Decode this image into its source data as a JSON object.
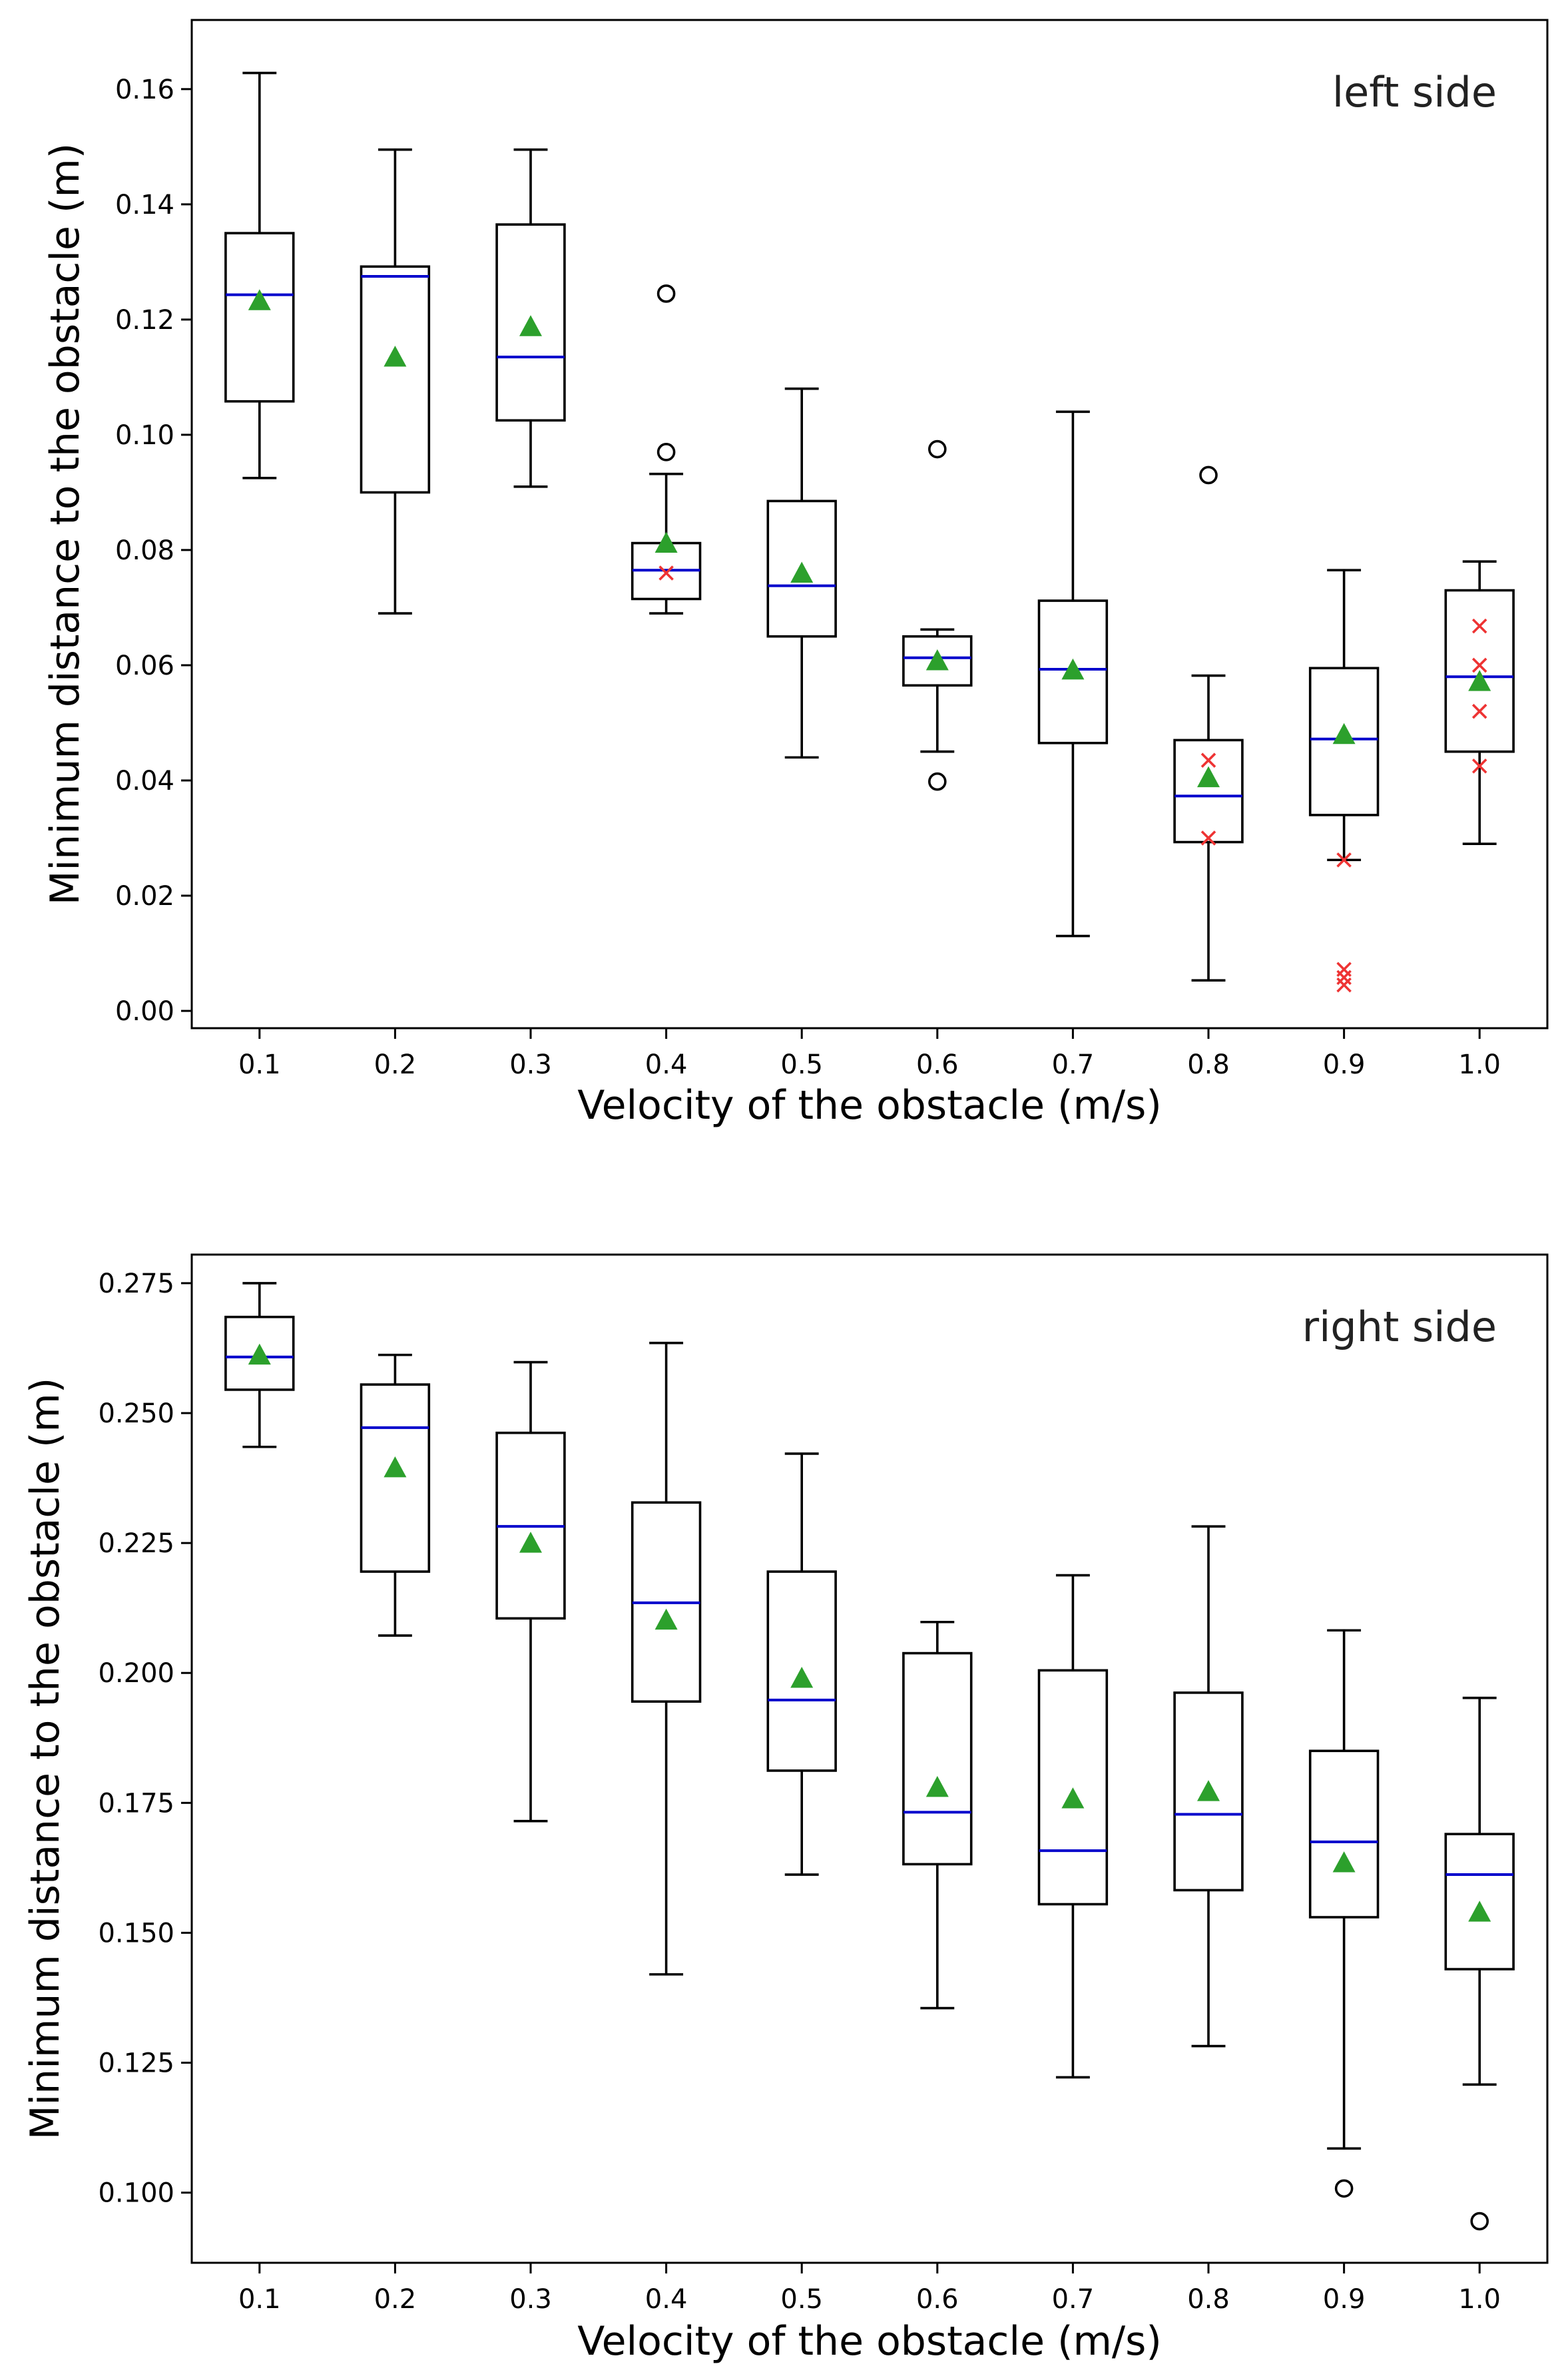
{
  "chart_data": [
    {
      "type": "box",
      "panel_label": "left side",
      "xlabel": "Velocity of the obstacle (m/s)",
      "ylabel": "Minimum distance to the obstacle (m)",
      "ylim": [
        -0.003,
        0.172
      ],
      "yticks": [
        "0.00",
        "0.02",
        "0.04",
        "0.06",
        "0.08",
        "0.10",
        "0.12",
        "0.14",
        "0.16"
      ],
      "ytick_values": [
        0.0,
        0.02,
        0.04,
        0.06,
        0.08,
        0.1,
        0.12,
        0.14,
        0.16
      ],
      "categories": [
        "0.1",
        "0.2",
        "0.3",
        "0.4",
        "0.5",
        "0.6",
        "0.7",
        "0.8",
        "0.9",
        "1.0"
      ],
      "boxes": [
        {
          "whisker_low": 0.0925,
          "q1": 0.1058,
          "median": 0.1243,
          "q3": 0.135,
          "whisker_high": 0.1628,
          "mean": 0.1233,
          "fliers": [],
          "x_marks": []
        },
        {
          "whisker_low": 0.069,
          "q1": 0.09,
          "median": 0.1275,
          "q3": 0.1292,
          "whisker_high": 0.1495,
          "mean": 0.1135,
          "fliers": [],
          "x_marks": []
        },
        {
          "whisker_low": 0.091,
          "q1": 0.1025,
          "median": 0.1135,
          "q3": 0.1365,
          "whisker_high": 0.1495,
          "mean": 0.1188,
          "fliers": [],
          "x_marks": []
        },
        {
          "whisker_low": 0.069,
          "q1": 0.0715,
          "median": 0.0765,
          "q3": 0.0812,
          "whisker_high": 0.0932,
          "mean": 0.0812,
          "fliers": [
            0.097,
            0.1245
          ],
          "x_marks": [
            0.076
          ]
        },
        {
          "whisker_low": 0.044,
          "q1": 0.065,
          "median": 0.0738,
          "q3": 0.0885,
          "whisker_high": 0.108,
          "mean": 0.076,
          "fliers": [],
          "x_marks": []
        },
        {
          "whisker_low": 0.045,
          "q1": 0.0565,
          "median": 0.0613,
          "q3": 0.065,
          "whisker_high": 0.0662,
          "mean": 0.0608,
          "fliers": [
            0.0398,
            0.0975
          ],
          "x_marks": []
        },
        {
          "whisker_low": 0.013,
          "q1": 0.0465,
          "median": 0.0593,
          "q3": 0.0712,
          "whisker_high": 0.104,
          "mean": 0.0592,
          "fliers": [],
          "x_marks": []
        },
        {
          "whisker_low": 0.0053,
          "q1": 0.0293,
          "median": 0.0373,
          "q3": 0.047,
          "whisker_high": 0.0582,
          "mean": 0.0405,
          "fliers": [
            0.093
          ],
          "x_marks": [
            0.03,
            0.0435
          ]
        },
        {
          "whisker_low": 0.0262,
          "q1": 0.034,
          "median": 0.0472,
          "q3": 0.0595,
          "whisker_high": 0.0765,
          "mean": 0.048,
          "fliers": [],
          "x_marks": [
            0.0262,
            0.0045,
            0.0058,
            0.0072
          ]
        },
        {
          "whisker_low": 0.029,
          "q1": 0.045,
          "median": 0.058,
          "q3": 0.073,
          "whisker_high": 0.078,
          "mean": 0.0572,
          "fliers": [],
          "x_marks": [
            0.0425,
            0.052,
            0.06,
            0.0668
          ]
        }
      ]
    },
    {
      "type": "box",
      "panel_label": "right side",
      "xlabel": "Velocity of the obstacle (m/s)",
      "ylabel": "Minimum distance to the obstacle (m)",
      "ylim": [
        0.0865,
        0.2805
      ],
      "yticks": [
        "0.100",
        "0.125",
        "0.150",
        "0.175",
        "0.200",
        "0.225",
        "0.250",
        "0.275"
      ],
      "ytick_values": [
        0.1,
        0.125,
        0.15,
        0.175,
        0.2,
        0.225,
        0.25,
        0.275
      ],
      "categories": [
        "0.1",
        "0.2",
        "0.3",
        "0.4",
        "0.5",
        "0.6",
        "0.7",
        "0.8",
        "0.9",
        "1.0"
      ],
      "boxes": [
        {
          "whisker_low": 0.2435,
          "q1": 0.2545,
          "median": 0.2608,
          "q3": 0.2685,
          "whisker_high": 0.275,
          "mean": 0.2612,
          "fliers": [],
          "x_marks": []
        },
        {
          "whisker_low": 0.2072,
          "q1": 0.2195,
          "median": 0.2472,
          "q3": 0.2555,
          "whisker_high": 0.2612,
          "mean": 0.2395,
          "fliers": [],
          "x_marks": []
        },
        {
          "whisker_low": 0.1715,
          "q1": 0.2105,
          "median": 0.2282,
          "q3": 0.2462,
          "whisker_high": 0.2598,
          "mean": 0.225,
          "fliers": [],
          "x_marks": []
        },
        {
          "whisker_low": 0.142,
          "q1": 0.1945,
          "median": 0.2135,
          "q3": 0.2328,
          "whisker_high": 0.2635,
          "mean": 0.2102,
          "fliers": [],
          "x_marks": []
        },
        {
          "whisker_low": 0.1612,
          "q1": 0.1812,
          "median": 0.1948,
          "q3": 0.2195,
          "whisker_high": 0.2422,
          "mean": 0.199,
          "fliers": [],
          "x_marks": []
        },
        {
          "whisker_low": 0.1355,
          "q1": 0.1632,
          "median": 0.1732,
          "q3": 0.2038,
          "whisker_high": 0.2098,
          "mean": 0.178,
          "fliers": [],
          "x_marks": []
        },
        {
          "whisker_low": 0.1222,
          "q1": 0.1555,
          "median": 0.1658,
          "q3": 0.2005,
          "whisker_high": 0.2188,
          "mean": 0.1758,
          "fliers": [],
          "x_marks": []
        },
        {
          "whisker_low": 0.1282,
          "q1": 0.1582,
          "median": 0.1728,
          "q3": 0.1962,
          "whisker_high": 0.2282,
          "mean": 0.1772,
          "fliers": [],
          "x_marks": []
        },
        {
          "whisker_low": 0.1085,
          "q1": 0.153,
          "median": 0.1675,
          "q3": 0.185,
          "whisker_high": 0.2082,
          "mean": 0.1635,
          "fliers": [
            0.1008
          ],
          "x_marks": []
        },
        {
          "whisker_low": 0.1208,
          "q1": 0.143,
          "median": 0.1612,
          "q3": 0.169,
          "whisker_high": 0.1952,
          "mean": 0.154,
          "fliers": [
            0.0945
          ],
          "x_marks": []
        }
      ]
    }
  ]
}
